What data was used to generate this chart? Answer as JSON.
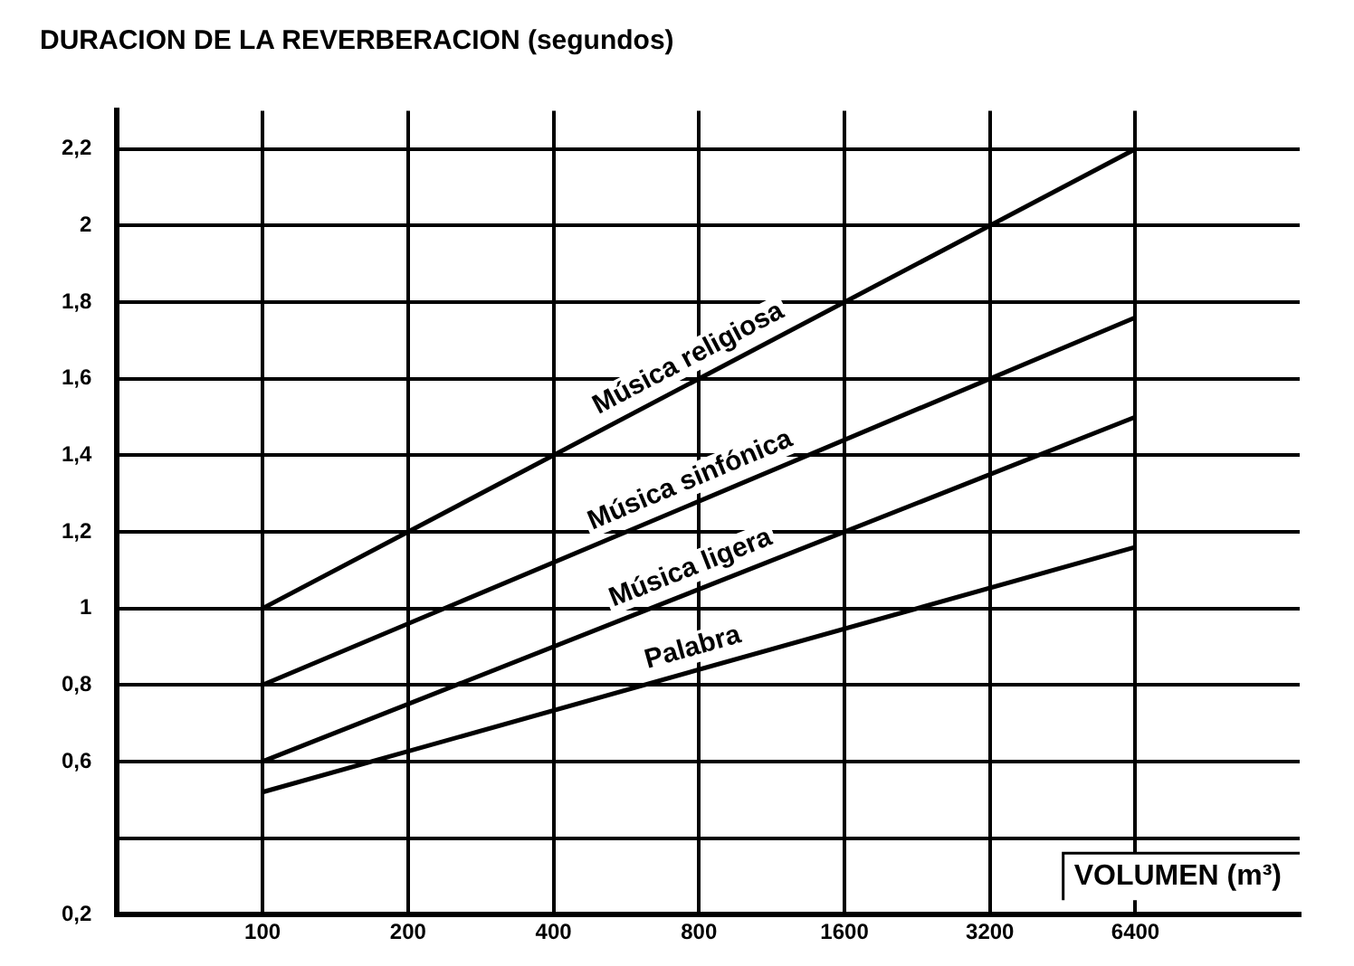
{
  "chart_data": {
    "type": "line",
    "xlabel": "VOLUMEN (m³)",
    "ylabel": "DURACION DE LA REVERBERACION (segundos)",
    "x": [
      100,
      6400
    ],
    "log": "x",
    "series": [
      {
        "name": "Música religiosa",
        "color": "#000000",
        "values": [
          1.0,
          2.2
        ]
      },
      {
        "name": "Música sinfónica",
        "color": "#000000",
        "values": [
          0.8,
          1.76
        ]
      },
      {
        "name": "Música ligera",
        "color": "#000000",
        "values": [
          0.6,
          1.5
        ]
      },
      {
        "name": "Palabra",
        "color": "#000000",
        "values": [
          0.52,
          1.16
        ]
      }
    ],
    "xlim": [
      50,
      14000
    ],
    "xticks": [
      100,
      200,
      400,
      800,
      1600,
      3200,
      6400
    ],
    "ylim": [
      0.2,
      2.3
    ],
    "yticks": [
      {
        "value": 0.2,
        "label": "0,2"
      },
      {
        "value": 0.4,
        "label": null
      },
      {
        "value": 0.6,
        "label": "0,6"
      },
      {
        "value": 0.8,
        "label": "0,8"
      },
      {
        "value": 1,
        "label": "1"
      },
      {
        "value": 1.2,
        "label": "1,2"
      },
      {
        "value": 1.4,
        "label": "1,4"
      },
      {
        "value": 1.6,
        "label": "1,6"
      },
      {
        "value": 1.8,
        "label": "1,8"
      },
      {
        "value": 2,
        "label": "2"
      },
      {
        "value": 2.2,
        "label": "2,2"
      }
    ],
    "grid": true,
    "legend": false,
    "marker": "none",
    "line_style": "solid"
  }
}
